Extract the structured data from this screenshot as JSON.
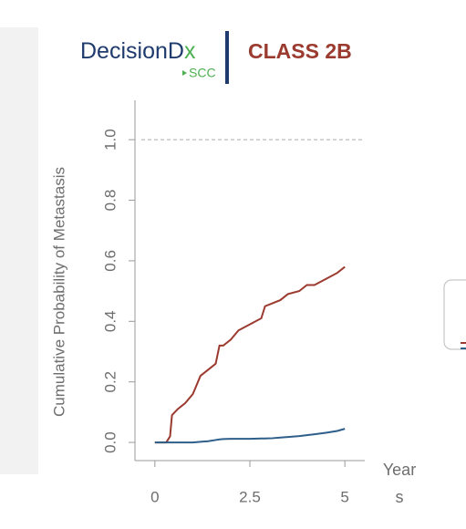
{
  "logo": {
    "brand_main": "DecisionD",
    "brand_x": "x",
    "sub": "SCC"
  },
  "chart_data": {
    "type": "line",
    "title": "CLASS 2B",
    "ylabel": "Cumulative Probability of Metastasis",
    "xlabel": "Years",
    "xlim": [
      -0.5,
      5.5
    ],
    "xticks": [
      0,
      2.5,
      5
    ],
    "ylim": [
      -0.06,
      1.13
    ],
    "yticks": [
      {
        "value": 0,
        "label": "0.0"
      },
      0.2,
      0.4,
      0.6,
      0.8,
      {
        "value": 1,
        "label": "1.0"
      }
    ],
    "reference_line": 1,
    "x": [
      0,
      0.3,
      0.4,
      0.45,
      0.6,
      0.8,
      1,
      1.2,
      1.4,
      1.6,
      1.7,
      1.8,
      2,
      2.2,
      2.5,
      2.8,
      2.9,
      3.1,
      3.3,
      3.5,
      3.8,
      4,
      4.2,
      4.5,
      4.8,
      5
    ],
    "series": [
      {
        "color": "#9b3a2e",
        "values": [
          0,
          0,
          0.02,
          0.09,
          0.11,
          0.13,
          0.16,
          0.22,
          0.24,
          0.26,
          0.32,
          0.32,
          0.34,
          0.37,
          0.39,
          0.41,
          0.45,
          0.46,
          0.47,
          0.49,
          0.5,
          0.52,
          0.52,
          0.54,
          0.56,
          0.58
        ]
      },
      {
        "color": "#2e5f8a",
        "values": [
          0,
          0,
          0,
          0,
          0,
          0,
          0,
          0.002,
          0.004,
          0.008,
          0.01,
          0.011,
          0.012,
          0.012,
          0.012,
          0.013,
          0.013,
          0.014,
          0.016,
          0.018,
          0.021,
          0.024,
          0.027,
          0.032,
          0.038,
          0.045
        ]
      }
    ]
  }
}
